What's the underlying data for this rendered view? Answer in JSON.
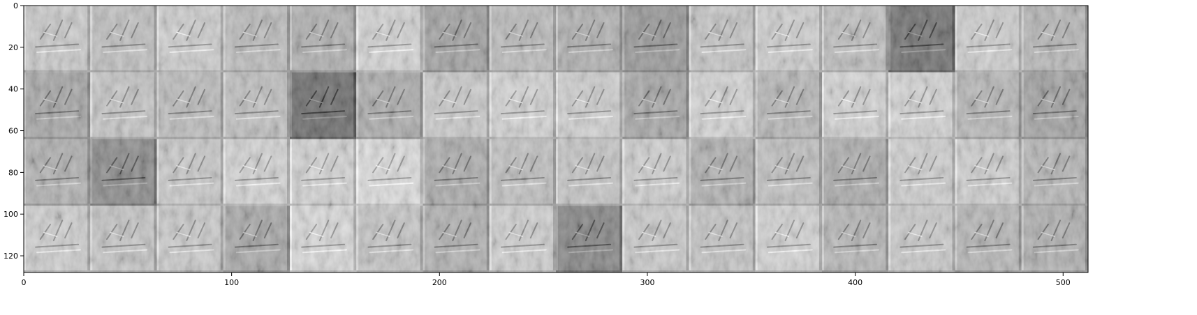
{
  "chart_data": {
    "type": "heatmap",
    "title": "",
    "xlabel": "",
    "ylabel": "",
    "xlim": [
      0,
      512
    ],
    "ylim": [
      128,
      0
    ],
    "grid": false,
    "colormap": "gray",
    "x_ticks": [
      0,
      100,
      200,
      300,
      400,
      500
    ],
    "x_tick_labels": [
      "0",
      "100",
      "200",
      "300",
      "400",
      "500"
    ],
    "y_ticks": [
      0,
      20,
      40,
      60,
      80,
      100,
      120
    ],
    "y_tick_labels": [
      "0",
      "20",
      "40",
      "60",
      "80",
      "100",
      "120"
    ],
    "tile_rows": 4,
    "tile_cols": 16,
    "tile_size": 32,
    "tile_brightness": [
      [
        0.78,
        0.74,
        0.8,
        0.72,
        0.68,
        0.82,
        0.62,
        0.72,
        0.68,
        0.58,
        0.76,
        0.8,
        0.74,
        0.42,
        0.8,
        0.7
      ],
      [
        0.64,
        0.76,
        0.72,
        0.74,
        0.4,
        0.66,
        0.78,
        0.82,
        0.8,
        0.64,
        0.82,
        0.7,
        0.82,
        0.82,
        0.7,
        0.62
      ],
      [
        0.68,
        0.52,
        0.78,
        0.82,
        0.82,
        0.86,
        0.66,
        0.74,
        0.76,
        0.8,
        0.68,
        0.74,
        0.66,
        0.8,
        0.8,
        0.7
      ],
      [
        0.8,
        0.76,
        0.78,
        0.64,
        0.84,
        0.76,
        0.68,
        0.8,
        0.5,
        0.78,
        0.76,
        0.82,
        0.7,
        0.78,
        0.7,
        0.68
      ]
    ]
  }
}
